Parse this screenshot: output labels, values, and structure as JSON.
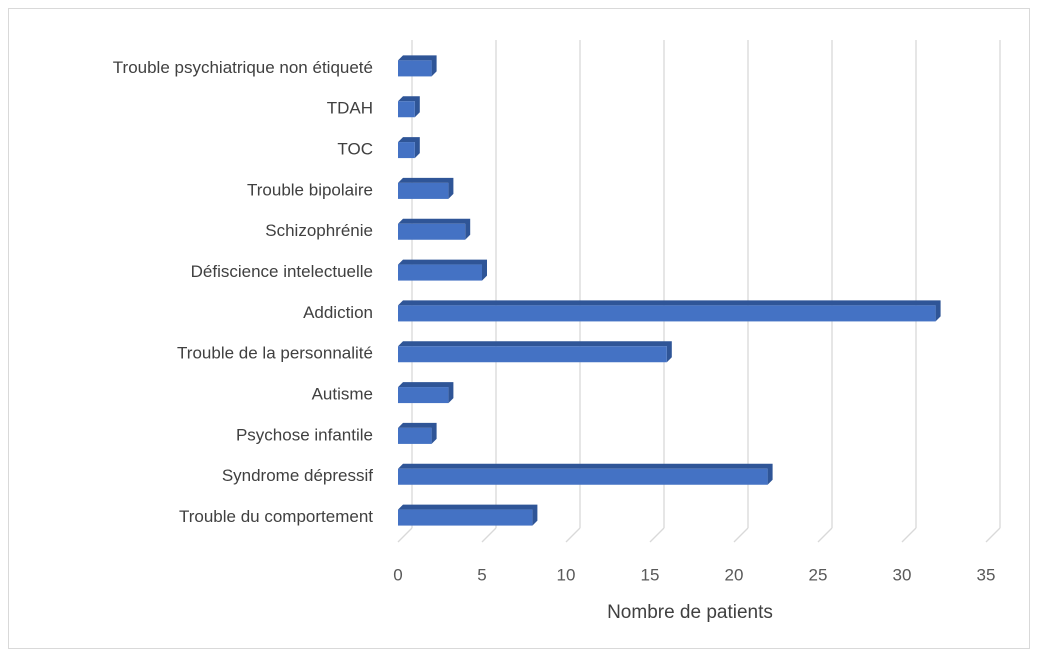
{
  "chart_data": {
    "type": "bar",
    "orientation": "horizontal",
    "x_label": "Nombre de patients",
    "categories": [
      "Trouble du comportement",
      "Syndrome dépressif",
      "Psychose infantile",
      "Autisme",
      "Trouble de la personnalité",
      "Addiction",
      "Défiscience intelectuelle",
      "Schizophrénie",
      "Trouble bipolaire",
      "TOC",
      "TDAH",
      "Trouble psychiatrique non étiqueté"
    ],
    "values": [
      8,
      22,
      2,
      3,
      16,
      32,
      5,
      4,
      3,
      1,
      1,
      2
    ],
    "color": "#4472c4",
    "xlim": [
      0,
      35
    ],
    "xticks": [
      0,
      5,
      10,
      15,
      20,
      25,
      30,
      35
    ],
    "grid": true
  }
}
